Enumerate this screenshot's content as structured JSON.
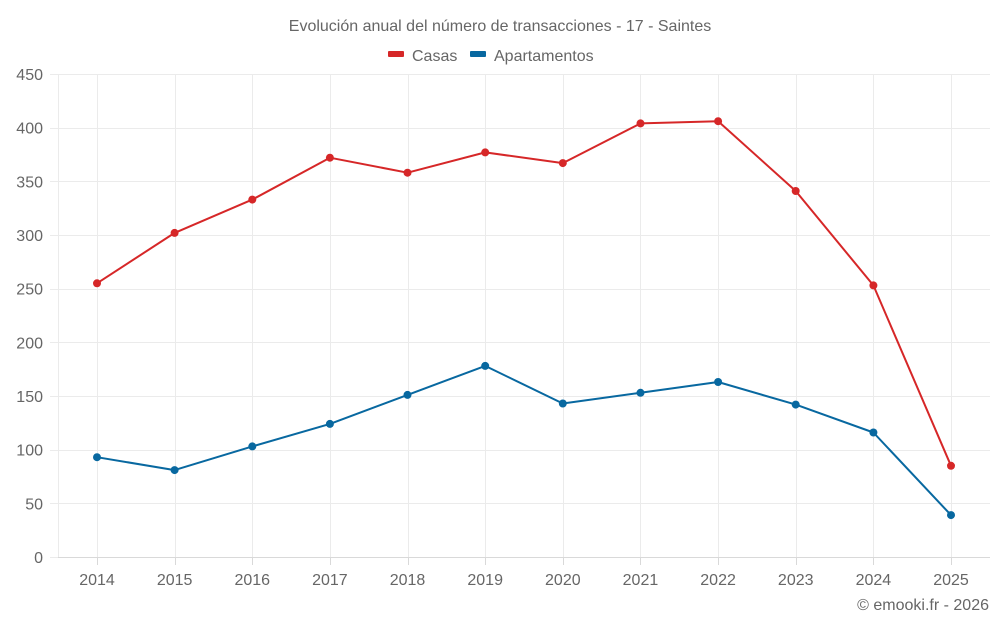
{
  "chart_data": {
    "type": "line",
    "title": "Evolución anual del número de transacciones - 17 - Saintes",
    "xlabel": "",
    "ylabel": "",
    "categories": [
      "2014",
      "2015",
      "2016",
      "2017",
      "2018",
      "2019",
      "2020",
      "2021",
      "2022",
      "2023",
      "2024",
      "2025"
    ],
    "ylim": [
      0,
      450
    ],
    "yticks": [
      0,
      50,
      100,
      150,
      200,
      250,
      300,
      350,
      400,
      450
    ],
    "grid": true,
    "legend_position": "top-center",
    "series": [
      {
        "name": "Casas",
        "color": "#d62728",
        "values": [
          255,
          302,
          333,
          372,
          358,
          377,
          367,
          404,
          406,
          341,
          253,
          85
        ]
      },
      {
        "name": "Apartamentos",
        "color": "#0868a0",
        "values": [
          93,
          81,
          103,
          124,
          151,
          178,
          143,
          153,
          163,
          142,
          116,
          39
        ]
      }
    ],
    "credit": "© emooki.fr - 2026"
  }
}
